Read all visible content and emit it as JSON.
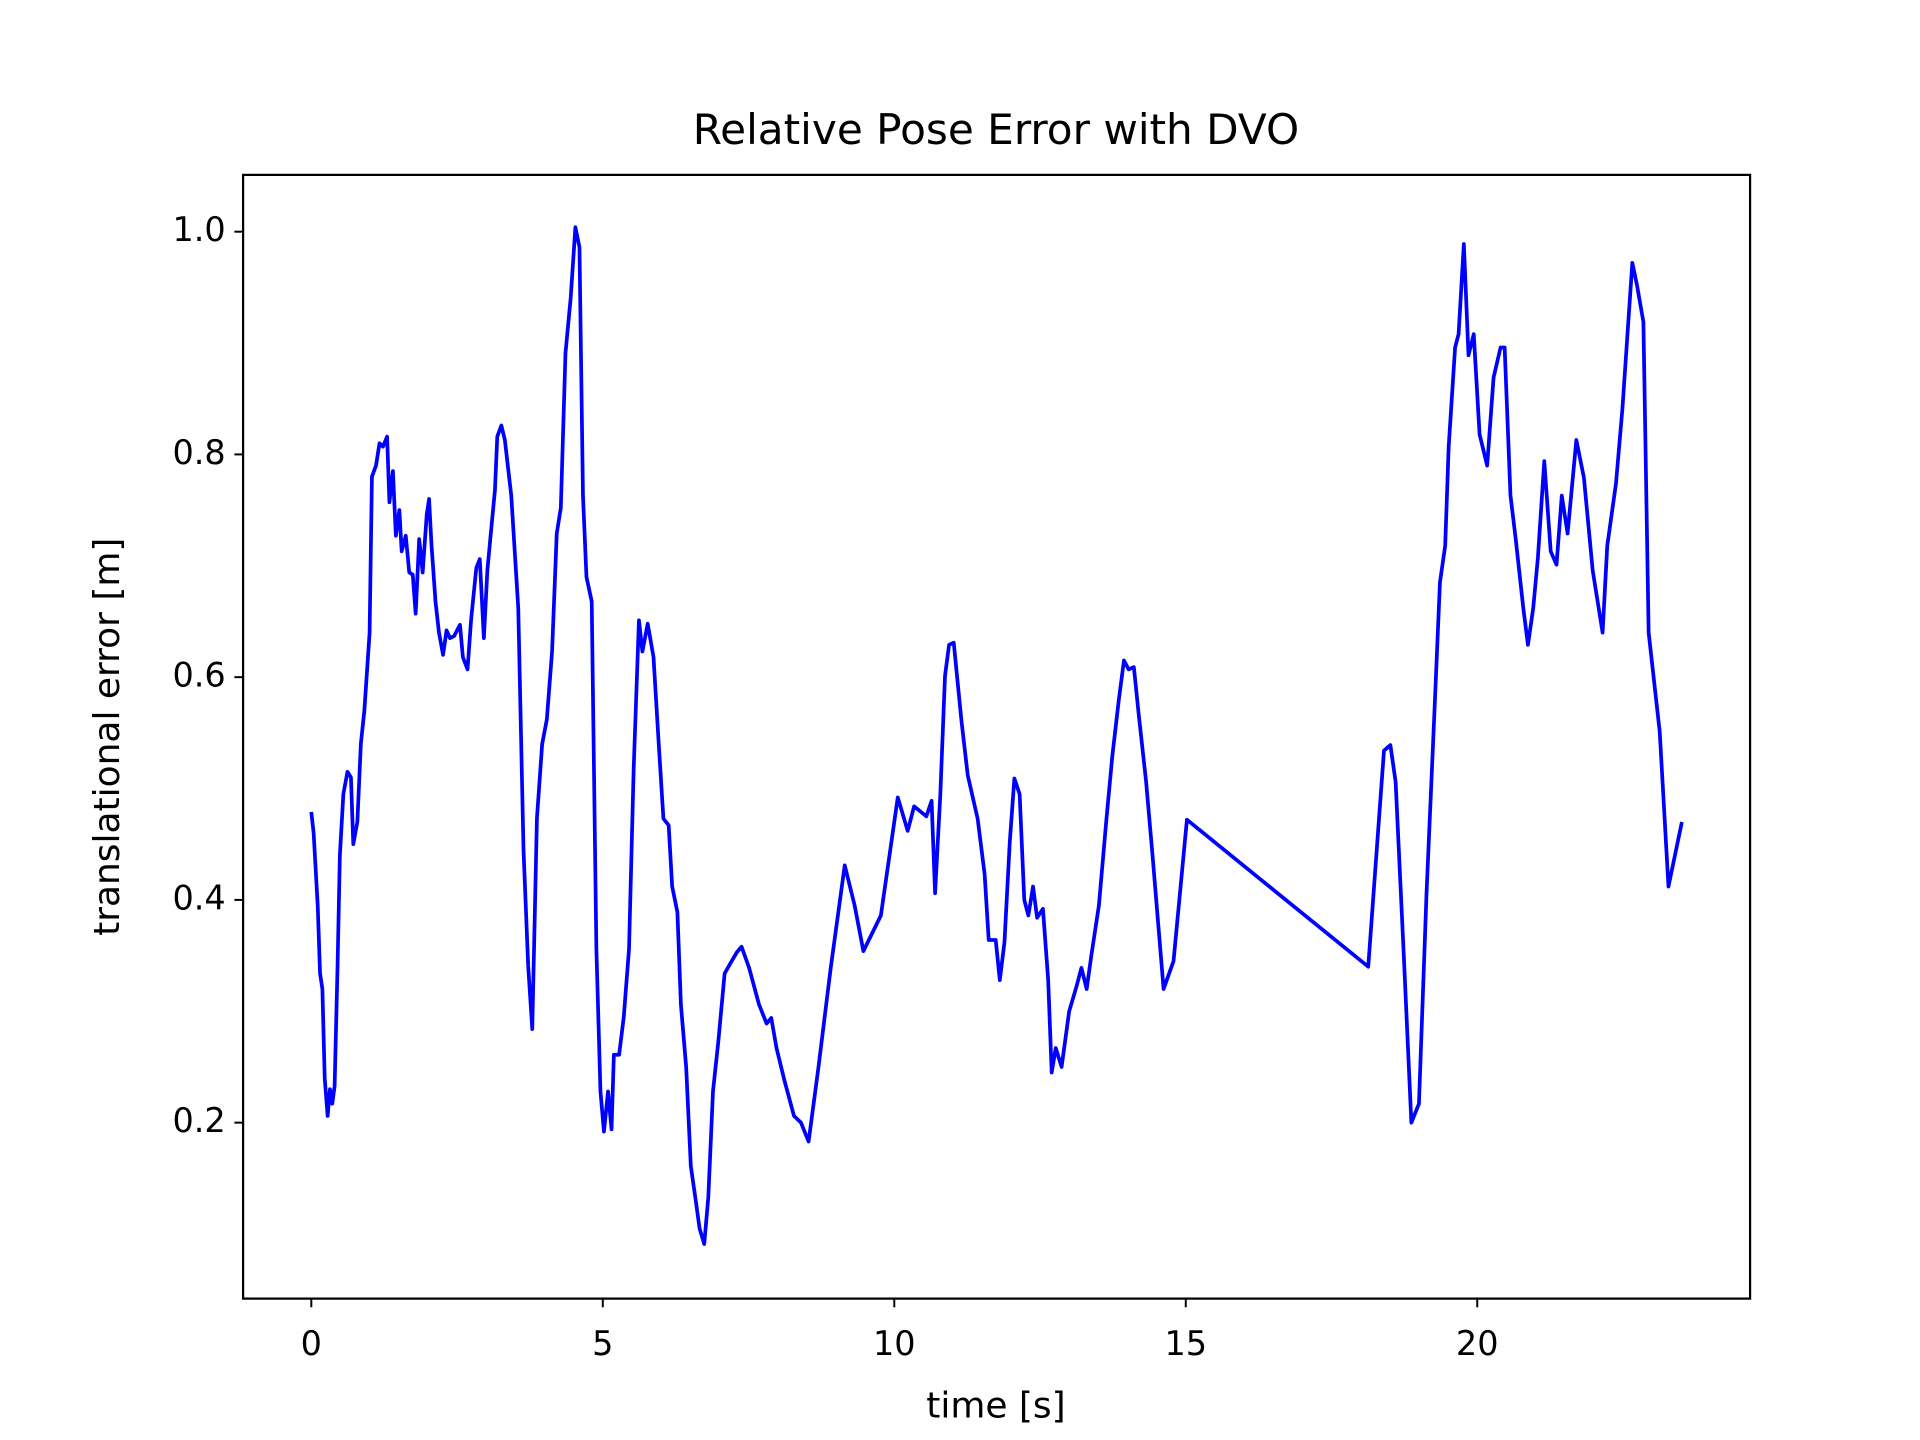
{
  "chart_data": {
    "type": "line",
    "title": "Relative Pose Error with DVO",
    "xlabel": "time [s]",
    "ylabel": "translational error [m]",
    "color": "#0000ff",
    "x": [
      0,
      0.04,
      0.11,
      0.15,
      0.19,
      0.23,
      0.28,
      0.32,
      0.36,
      0.4,
      0.45,
      0.49,
      0.55,
      0.62,
      0.68,
      0.72,
      0.79,
      0.85,
      0.91,
      1.0,
      1.04,
      1.11,
      1.17,
      1.23,
      1.3,
      1.34,
      1.4,
      1.45,
      1.51,
      1.55,
      1.62,
      1.68,
      1.74,
      1.79,
      1.85,
      1.91,
      1.98,
      2.02,
      2.06,
      2.13,
      2.19,
      2.26,
      2.32,
      2.38,
      2.45,
      2.55,
      2.6,
      2.68,
      2.74,
      2.83,
      2.89,
      2.96,
      3.02,
      3.09,
      3.15,
      3.19,
      3.26,
      3.32,
      3.43,
      3.55,
      3.64,
      3.72,
      3.79,
      3.87,
      3.96,
      4.04,
      4.13,
      4.21,
      4.28,
      4.36,
      4.45,
      4.53,
      4.6,
      4.66,
      4.72,
      4.81,
      4.89,
      4.96,
      5.02,
      5.09,
      5.15,
      5.19,
      5.28,
      5.36,
      5.45,
      5.53,
      5.62,
      5.68,
      5.77,
      5.87,
      5.96,
      6.04,
      6.13,
      6.19,
      6.28,
      6.34,
      6.43,
      6.51,
      6.6,
      6.66,
      6.74,
      6.81,
      6.89,
      6.98,
      7.09,
      7.21,
      7.3,
      7.38,
      7.51,
      7.68,
      7.81,
      7.89,
      7.98,
      8.11,
      8.28,
      8.4,
      8.53,
      8.7,
      8.91,
      9.15,
      9.32,
      9.47,
      9.77,
      10.06,
      10.23,
      10.34,
      10.55,
      10.64,
      10.7,
      10.79,
      10.87,
      10.94,
      11.02,
      11.15,
      11.26,
      11.43,
      11.55,
      11.62,
      11.74,
      11.81,
      11.89,
      11.98,
      12.06,
      12.15,
      12.23,
      12.3,
      12.38,
      12.45,
      12.55,
      12.64,
      12.7,
      12.77,
      12.87,
      13.0,
      13.13,
      13.21,
      13.3,
      13.38,
      13.51,
      13.64,
      13.74,
      13.85,
      13.94,
      14.02,
      14.11,
      14.19,
      14.32,
      14.43,
      14.62,
      14.79,
      15.02,
      18.13,
      18.23,
      18.4,
      18.51,
      18.6,
      18.74,
      18.87,
      19.0,
      19.13,
      19.26,
      19.36,
      19.45,
      19.51,
      19.62,
      19.68,
      19.77,
      19.85,
      19.94,
      20.04,
      20.17,
      20.28,
      20.4,
      20.47,
      20.57,
      20.66,
      20.79,
      20.87,
      20.96,
      21.04,
      21.15,
      21.26,
      21.36,
      21.45,
      21.55,
      21.7,
      21.83,
      21.98,
      22.15,
      22.23,
      22.38,
      22.49,
      22.66,
      22.74,
      22.85,
      22.94,
      23.13,
      23.28,
      23.51
    ],
    "values": [
      0.479,
      0.46,
      0.395,
      0.334,
      0.32,
      0.24,
      0.206,
      0.23,
      0.217,
      0.233,
      0.34,
      0.44,
      0.495,
      0.515,
      0.51,
      0.45,
      0.47,
      0.54,
      0.57,
      0.64,
      0.78,
      0.79,
      0.81,
      0.807,
      0.816,
      0.757,
      0.785,
      0.727,
      0.75,
      0.713,
      0.727,
      0.694,
      0.692,
      0.657,
      0.724,
      0.694,
      0.746,
      0.76,
      0.72,
      0.668,
      0.64,
      0.62,
      0.642,
      0.635,
      0.637,
      0.647,
      0.618,
      0.607,
      0.651,
      0.698,
      0.706,
      0.635,
      0.696,
      0.735,
      0.768,
      0.816,
      0.826,
      0.813,
      0.763,
      0.662,
      0.445,
      0.341,
      0.284,
      0.473,
      0.54,
      0.562,
      0.623,
      0.729,
      0.752,
      0.891,
      0.941,
      1.004,
      0.986,
      0.763,
      0.69,
      0.668,
      0.356,
      0.228,
      0.192,
      0.228,
      0.194,
      0.261,
      0.261,
      0.295,
      0.356,
      0.518,
      0.651,
      0.623,
      0.648,
      0.618,
      0.54,
      0.473,
      0.467,
      0.412,
      0.389,
      0.306,
      0.25,
      0.161,
      0.128,
      0.105,
      0.091,
      0.133,
      0.228,
      0.272,
      0.334,
      0.345,
      0.353,
      0.358,
      0.339,
      0.306,
      0.289,
      0.294,
      0.267,
      0.239,
      0.206,
      0.2,
      0.183,
      0.25,
      0.339,
      0.431,
      0.395,
      0.354,
      0.386,
      0.492,
      0.462,
      0.484,
      0.475,
      0.489,
      0.406,
      0.495,
      0.601,
      0.629,
      0.631,
      0.562,
      0.512,
      0.473,
      0.423,
      0.364,
      0.364,
      0.328,
      0.362,
      0.451,
      0.509,
      0.495,
      0.4,
      0.386,
      0.412,
      0.384,
      0.392,
      0.328,
      0.245,
      0.267,
      0.25,
      0.3,
      0.323,
      0.339,
      0.32,
      0.35,
      0.395,
      0.473,
      0.529,
      0.579,
      0.615,
      0.607,
      0.609,
      0.568,
      0.506,
      0.44,
      0.32,
      0.345,
      0.472,
      0.34,
      0.412,
      0.534,
      0.539,
      0.506,
      0.35,
      0.2,
      0.217,
      0.406,
      0.562,
      0.685,
      0.718,
      0.807,
      0.896,
      0.908,
      0.989,
      0.889,
      0.908,
      0.818,
      0.79,
      0.869,
      0.896,
      0.896,
      0.763,
      0.724,
      0.662,
      0.629,
      0.662,
      0.707,
      0.794,
      0.713,
      0.701,
      0.763,
      0.729,
      0.813,
      0.779,
      0.696,
      0.64,
      0.718,
      0.774,
      0.841,
      0.972,
      0.952,
      0.919,
      0.64,
      0.551,
      0.412,
      0.47
    ],
    "xlim": [
      -1.17,
      24.68
    ],
    "ylim": [
      0.042,
      1.051
    ],
    "xticks": [
      0,
      5,
      10,
      15,
      20
    ],
    "yticks": [
      0.2,
      0.4,
      0.6,
      0.8,
      {
        "value": 1,
        "label": "1.0"
      }
    ],
    "grid": false
  }
}
